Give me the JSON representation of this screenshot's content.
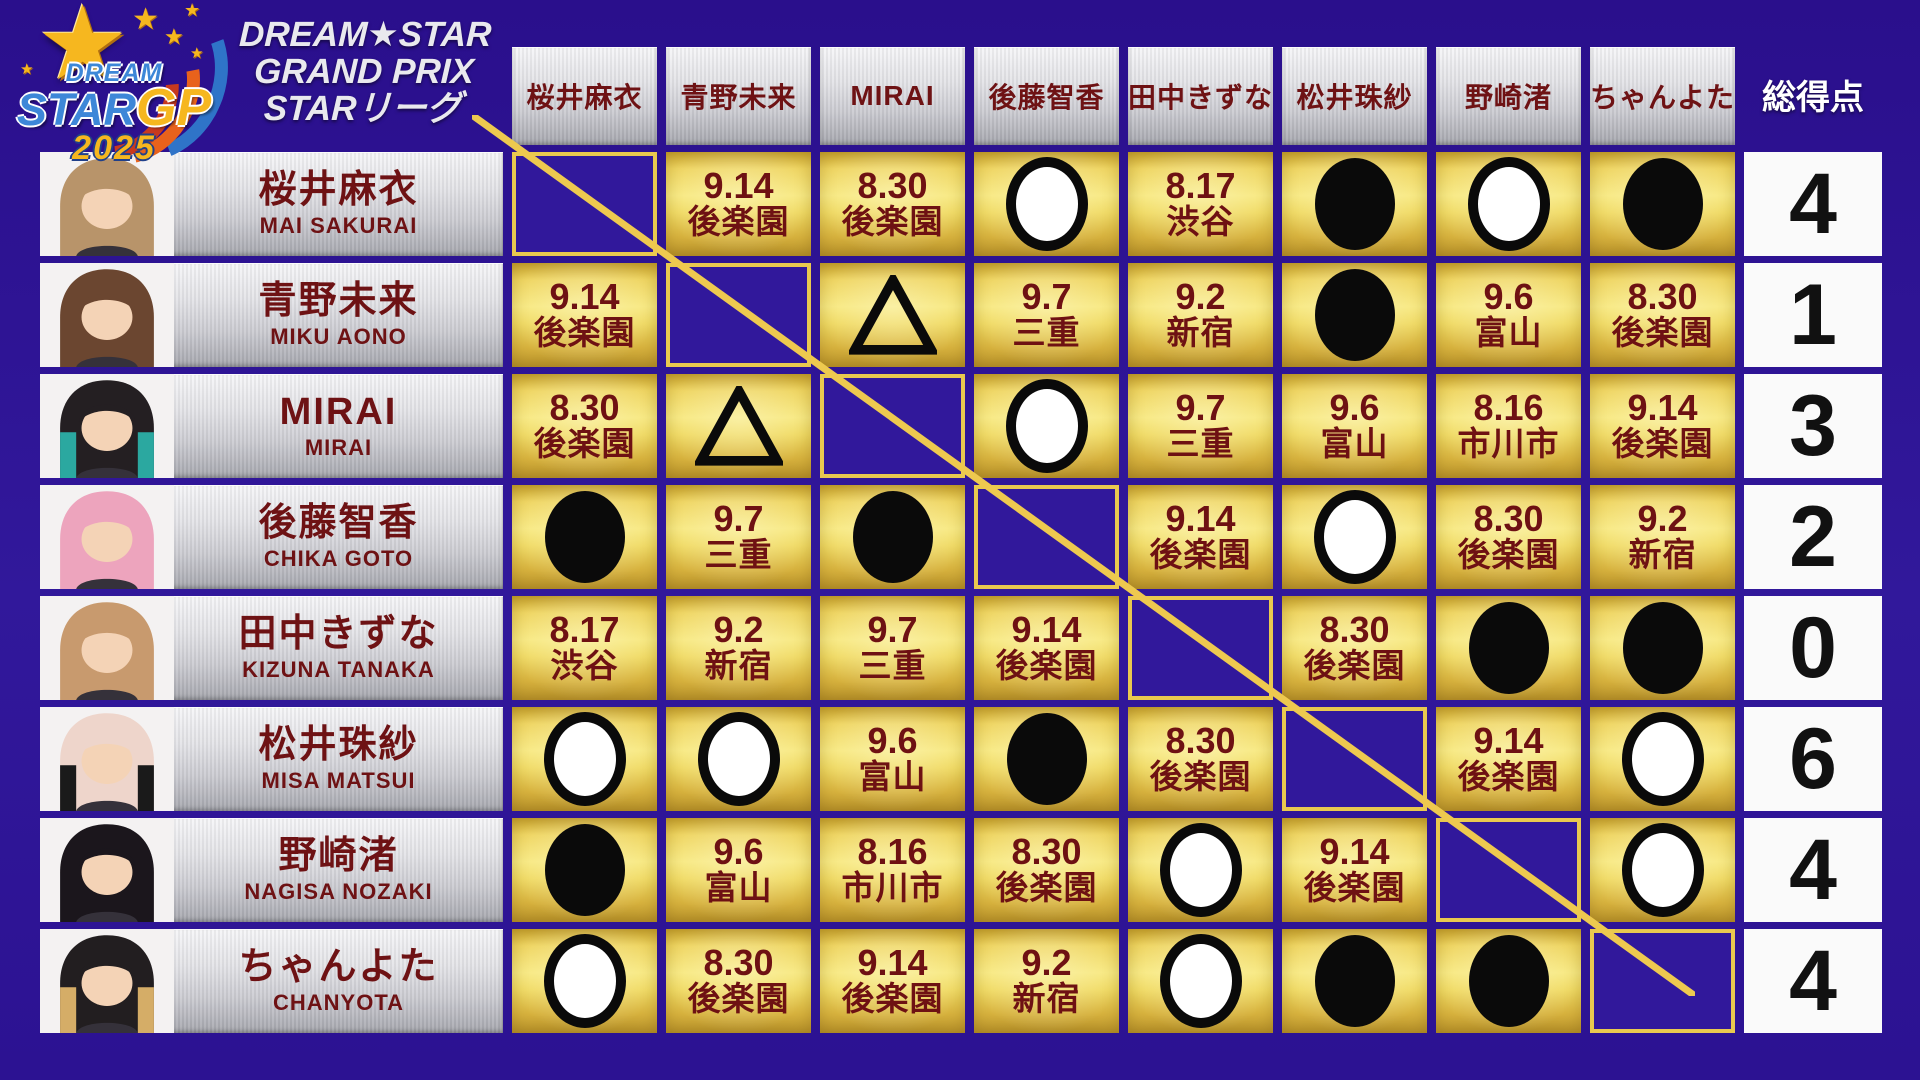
{
  "logo": {
    "dream": "DREAM",
    "star": "STAR",
    "gp": "GP",
    "year": "2025",
    "big_star_icon": "★",
    "small_star_icon": "★"
  },
  "title_lines": [
    "DREAM★STAR",
    "GRAND PRIX",
    "STARリーグ"
  ],
  "total_header": "総得点",
  "legend": {
    "win_symbol": "○",
    "loss_symbol": "●",
    "draw_symbol": "△"
  },
  "colors": {
    "background": "#31189b",
    "gold_cell": "#f7e87e",
    "diag_border": "#e9c94f",
    "plate_text": "#6e1214",
    "total_header_text": "#ffffff",
    "total_number_text": "#111111"
  },
  "chart_data": {
    "type": "table",
    "title": "DREAM★STAR GRAND PRIX STARリーグ 星取表 2025",
    "columns": [
      "桜井麻衣",
      "青野未来",
      "MIRAI",
      "後藤智香",
      "田中きずな",
      "松井珠紗",
      "野崎渚",
      "ちゃんよた",
      "総得点"
    ],
    "players": [
      {
        "name_ja": "桜井麻衣",
        "name_en": "MAI SAKURAI",
        "hair": "#b8946a",
        "hair2": "",
        "total": "4",
        "results": [
          {
            "t": "diag"
          },
          {
            "t": "date",
            "d": "9.14",
            "v": "後楽園"
          },
          {
            "t": "date",
            "d": "8.30",
            "v": "後楽園"
          },
          {
            "t": "win"
          },
          {
            "t": "date",
            "d": "8.17",
            "v": "渋谷"
          },
          {
            "t": "loss"
          },
          {
            "t": "win"
          },
          {
            "t": "loss"
          }
        ]
      },
      {
        "name_ja": "青野未来",
        "name_en": "MIKU AONO",
        "hair": "#6b4630",
        "hair2": "",
        "total": "1",
        "results": [
          {
            "t": "date",
            "d": "9.14",
            "v": "後楽園"
          },
          {
            "t": "diag"
          },
          {
            "t": "draw"
          },
          {
            "t": "date",
            "d": "9.7",
            "v": "三重"
          },
          {
            "t": "date",
            "d": "9.2",
            "v": "新宿"
          },
          {
            "t": "loss"
          },
          {
            "t": "date",
            "d": "9.6",
            "v": "富山"
          },
          {
            "t": "date",
            "d": "8.30",
            "v": "後楽園"
          }
        ]
      },
      {
        "name_ja": "MIRAI",
        "name_en": "MIRAI",
        "hair": "#241f22",
        "hair2": "#2ba8a0",
        "total": "3",
        "results": [
          {
            "t": "date",
            "d": "8.30",
            "v": "後楽園"
          },
          {
            "t": "draw"
          },
          {
            "t": "diag"
          },
          {
            "t": "win"
          },
          {
            "t": "date",
            "d": "9.7",
            "v": "三重"
          },
          {
            "t": "date",
            "d": "9.6",
            "v": "富山"
          },
          {
            "t": "date",
            "d": "8.16",
            "v": "市川市"
          },
          {
            "t": "date",
            "d": "9.14",
            "v": "後楽園"
          }
        ]
      },
      {
        "name_ja": "後藤智香",
        "name_en": "CHIKA GOTO",
        "hair": "#eda4bd",
        "hair2": "",
        "total": "2",
        "results": [
          {
            "t": "loss"
          },
          {
            "t": "date",
            "d": "9.7",
            "v": "三重"
          },
          {
            "t": "loss"
          },
          {
            "t": "diag"
          },
          {
            "t": "date",
            "d": "9.14",
            "v": "後楽園"
          },
          {
            "t": "win"
          },
          {
            "t": "date",
            "d": "8.30",
            "v": "後楽園"
          },
          {
            "t": "date",
            "d": "9.2",
            "v": "新宿"
          }
        ]
      },
      {
        "name_ja": "田中きずな",
        "name_en": "KIZUNA TANAKA",
        "hair": "#c89a6e",
        "hair2": "",
        "total": "0",
        "results": [
          {
            "t": "date",
            "d": "8.17",
            "v": "渋谷"
          },
          {
            "t": "date",
            "d": "9.2",
            "v": "新宿"
          },
          {
            "t": "date",
            "d": "9.7",
            "v": "三重"
          },
          {
            "t": "date",
            "d": "9.14",
            "v": "後楽園"
          },
          {
            "t": "diag"
          },
          {
            "t": "date",
            "d": "8.30",
            "v": "後楽園"
          },
          {
            "t": "loss"
          },
          {
            "t": "loss"
          }
        ]
      },
      {
        "name_ja": "松井珠紗",
        "name_en": "MISA MATSUI",
        "hair": "#eed5cb",
        "hair2": "#1a1a1a",
        "total": "6",
        "results": [
          {
            "t": "win"
          },
          {
            "t": "win"
          },
          {
            "t": "date",
            "d": "9.6",
            "v": "富山"
          },
          {
            "t": "loss"
          },
          {
            "t": "date",
            "d": "8.30",
            "v": "後楽園"
          },
          {
            "t": "diag"
          },
          {
            "t": "date",
            "d": "9.14",
            "v": "後楽園"
          },
          {
            "t": "win"
          }
        ]
      },
      {
        "name_ja": "野崎渚",
        "name_en": "NAGISA NOZAKI",
        "hair": "#1b161c",
        "hair2": "",
        "total": "4",
        "results": [
          {
            "t": "loss"
          },
          {
            "t": "date",
            "d": "9.6",
            "v": "富山"
          },
          {
            "t": "date",
            "d": "8.16",
            "v": "市川市"
          },
          {
            "t": "date",
            "d": "8.30",
            "v": "後楽園"
          },
          {
            "t": "win"
          },
          {
            "t": "date",
            "d": "9.14",
            "v": "後楽園"
          },
          {
            "t": "diag"
          },
          {
            "t": "win"
          }
        ]
      },
      {
        "name_ja": "ちゃんよた",
        "name_en": "CHANYOTA",
        "hair": "#221e20",
        "hair2": "#d5ad67",
        "total": "4",
        "results": [
          {
            "t": "win"
          },
          {
            "t": "date",
            "d": "8.30",
            "v": "後楽園"
          },
          {
            "t": "date",
            "d": "9.14",
            "v": "後楽園"
          },
          {
            "t": "date",
            "d": "9.2",
            "v": "新宿"
          },
          {
            "t": "win"
          },
          {
            "t": "loss"
          },
          {
            "t": "loss"
          },
          {
            "t": "diag"
          }
        ]
      }
    ]
  }
}
